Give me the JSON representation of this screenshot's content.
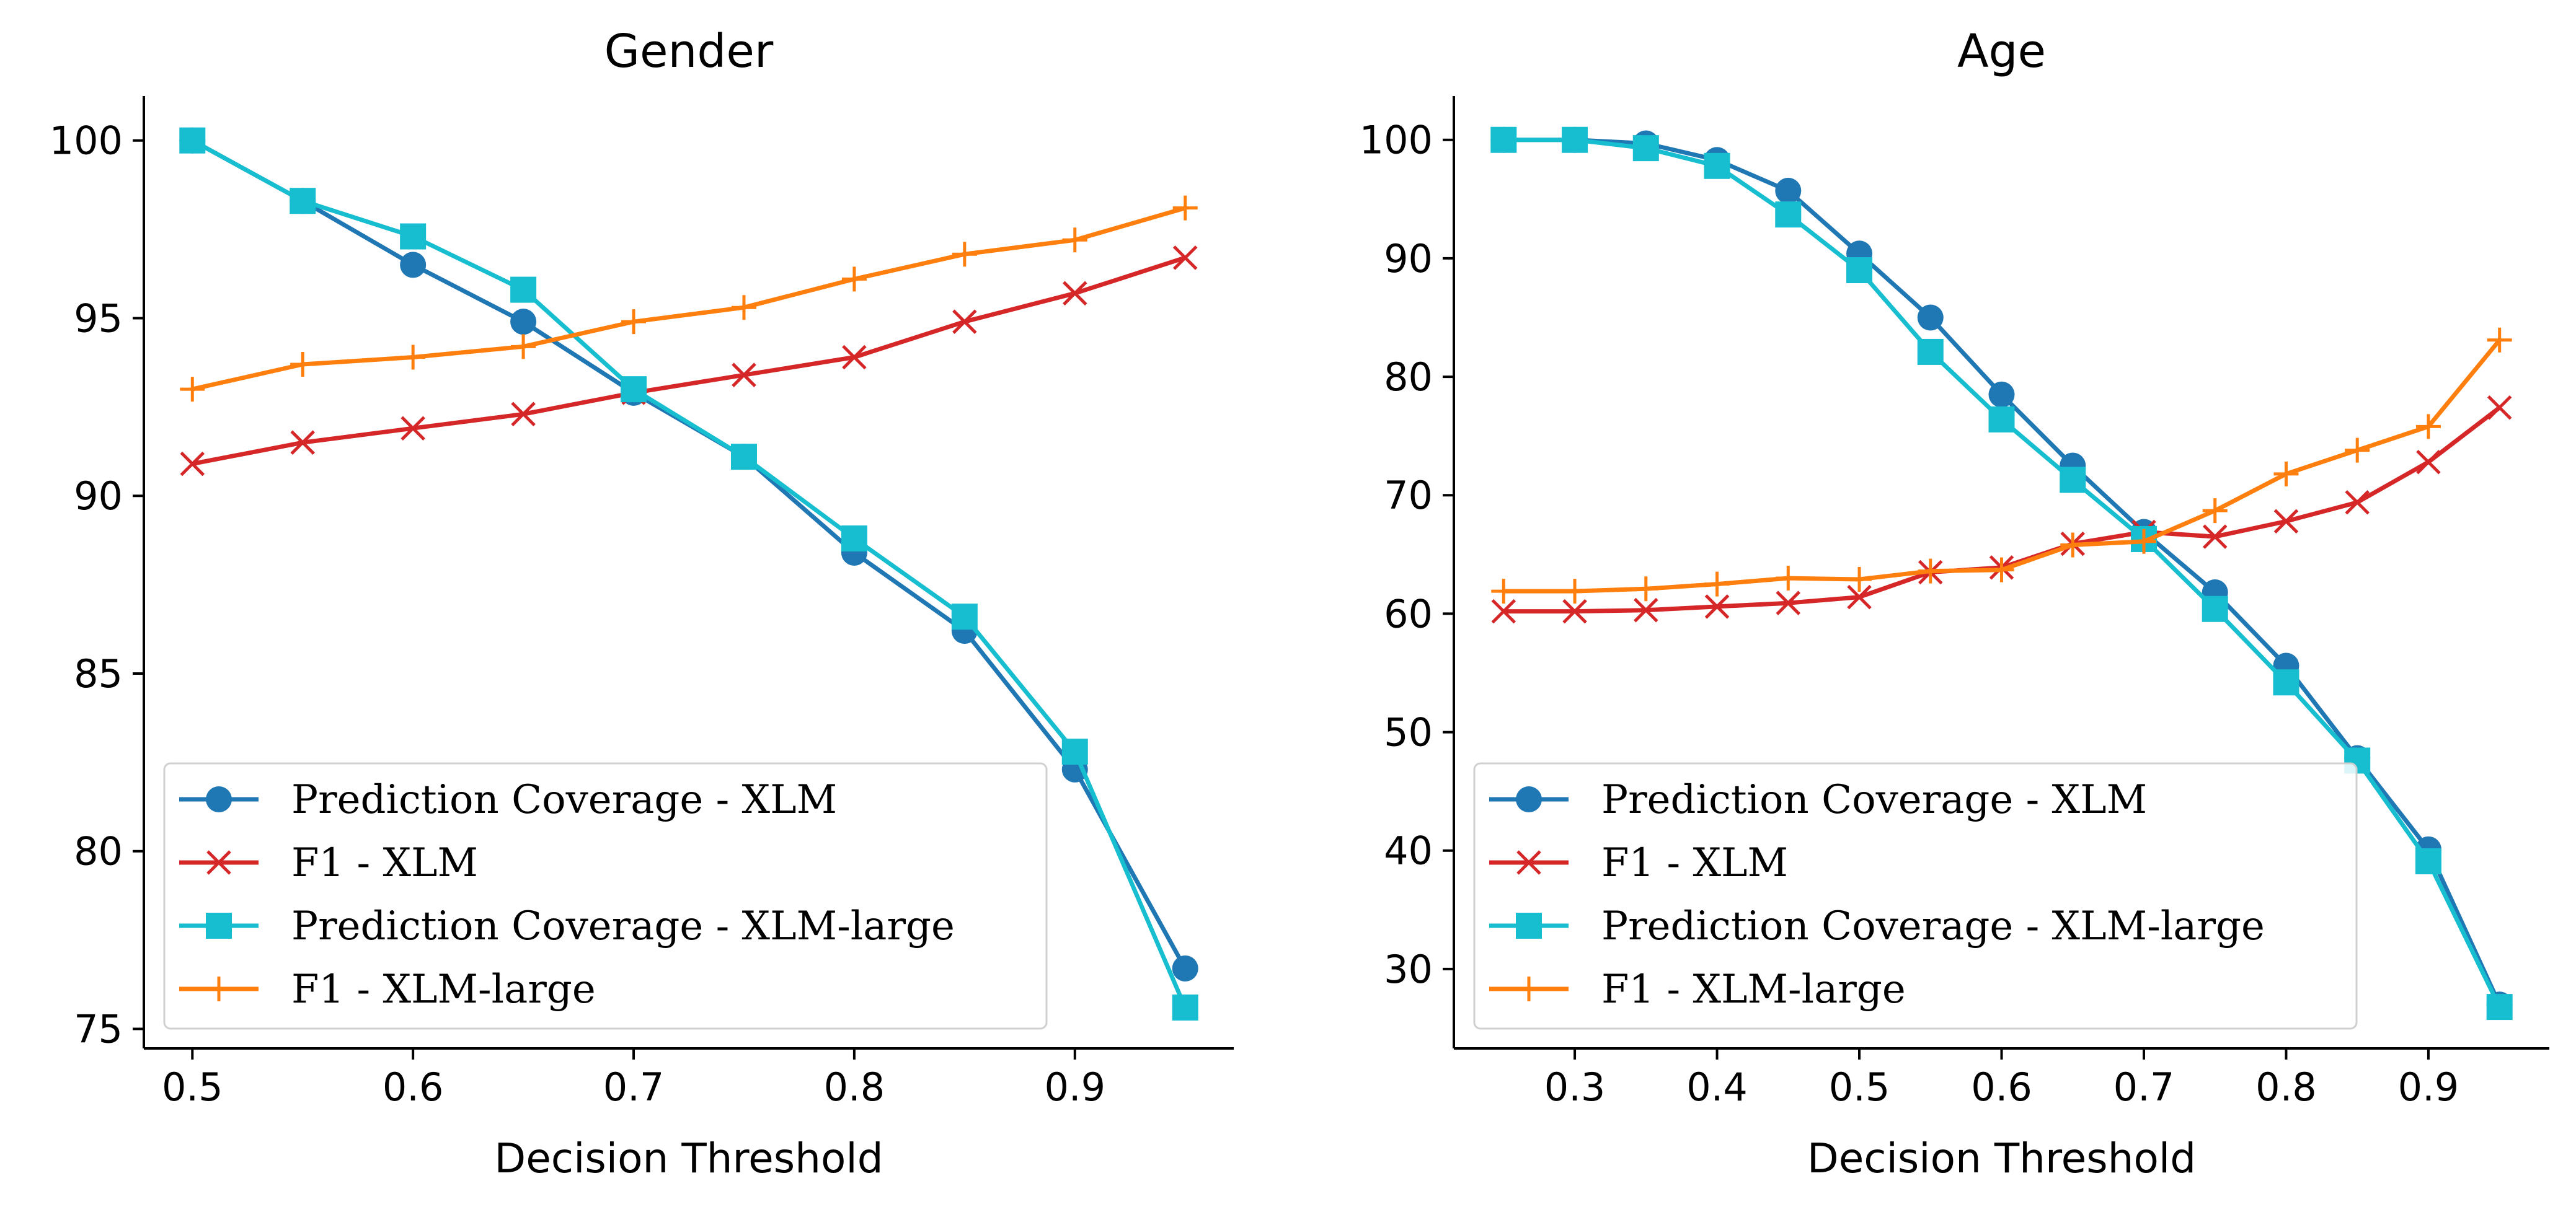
{
  "chart_data": [
    {
      "type": "line",
      "title": "Gender",
      "xlabel": "Decision Threshold",
      "ylabel": "",
      "xlim": [
        0.478,
        0.972
      ],
      "ylim": [
        74.45,
        101.25
      ],
      "xticks": [
        0.5,
        0.6,
        0.7,
        0.8,
        0.9
      ],
      "xtick_labels": [
        "0.5",
        "0.6",
        "0.7",
        "0.8",
        "0.9"
      ],
      "yticks": [
        75,
        80,
        85,
        90,
        95,
        100
      ],
      "ytick_labels": [
        "75",
        "80",
        "85",
        "90",
        "95",
        "100"
      ],
      "x": [
        0.5,
        0.55,
        0.6,
        0.65,
        0.7,
        0.75,
        0.8,
        0.85,
        0.9,
        0.95
      ],
      "legend_position": "lower-left",
      "series": [
        {
          "name": "Prediction Coverage - XLM",
          "color": "#1f77b4",
          "marker": "circle",
          "values": [
            100.0,
            98.3,
            96.5,
            94.9,
            92.9,
            91.1,
            88.4,
            86.2,
            82.3,
            76.7
          ]
        },
        {
          "name": "F1 - XLM",
          "color": "#d62728",
          "marker": "x",
          "values": [
            90.9,
            91.5,
            91.9,
            92.3,
            92.9,
            93.4,
            93.9,
            94.9,
            95.7,
            96.7
          ]
        },
        {
          "name": "Prediction Coverage - XLM-large",
          "color": "#17becf",
          "marker": "square",
          "values": [
            100.0,
            98.3,
            97.3,
            95.8,
            93.0,
            91.1,
            88.8,
            86.6,
            82.8,
            75.6
          ]
        },
        {
          "name": "F1 - XLM-large",
          "color": "#ff7f0e",
          "marker": "plus",
          "values": [
            93.0,
            93.7,
            93.9,
            94.2,
            94.9,
            95.3,
            96.1,
            96.8,
            97.2,
            98.1
          ]
        }
      ]
    },
    {
      "type": "line",
      "title": "Age",
      "xlabel": "Decision Threshold",
      "ylabel": "",
      "xlim": [
        0.215,
        0.985
      ],
      "ylim": [
        23.3,
        103.7
      ],
      "xticks": [
        0.3,
        0.4,
        0.5,
        0.6,
        0.7,
        0.8,
        0.9
      ],
      "xtick_labels": [
        "0.3",
        "0.4",
        "0.5",
        "0.6",
        "0.7",
        "0.8",
        "0.9"
      ],
      "yticks": [
        30,
        40,
        50,
        60,
        70,
        80,
        90,
        100
      ],
      "ytick_labels": [
        "30",
        "40",
        "50",
        "60",
        "70",
        "80",
        "90",
        "100"
      ],
      "x": [
        0.25,
        0.3,
        0.35,
        0.4,
        0.45,
        0.5,
        0.55,
        0.6,
        0.65,
        0.7,
        0.75,
        0.8,
        0.85,
        0.9,
        0.95
      ],
      "legend_position": "lower-left",
      "series": [
        {
          "name": "Prediction Coverage - XLM",
          "color": "#1f77b4",
          "marker": "circle",
          "values": [
            100.0,
            100.0,
            99.7,
            98.3,
            95.7,
            90.4,
            85.0,
            78.5,
            72.5,
            66.9,
            61.8,
            55.6,
            47.8,
            40.1,
            27.0
          ]
        },
        {
          "name": "F1 - XLM",
          "color": "#d62728",
          "marker": "x",
          "values": [
            60.2,
            60.2,
            60.3,
            60.6,
            60.9,
            61.4,
            63.5,
            63.9,
            65.9,
            66.9,
            66.5,
            67.8,
            69.4,
            72.8,
            77.4
          ]
        },
        {
          "name": "Prediction Coverage - XLM-large",
          "color": "#17becf",
          "marker": "square",
          "values": [
            100.0,
            100.0,
            99.3,
            97.8,
            93.7,
            89.0,
            82.1,
            76.4,
            71.3,
            66.3,
            60.4,
            54.2,
            47.6,
            39.1,
            26.8
          ]
        },
        {
          "name": "F1 - XLM-large",
          "color": "#ff7f0e",
          "marker": "plus",
          "values": [
            61.9,
            61.9,
            62.1,
            62.5,
            63.0,
            62.9,
            63.6,
            63.7,
            65.8,
            66.1,
            68.7,
            71.8,
            73.8,
            75.8,
            83.1
          ]
        }
      ]
    }
  ]
}
